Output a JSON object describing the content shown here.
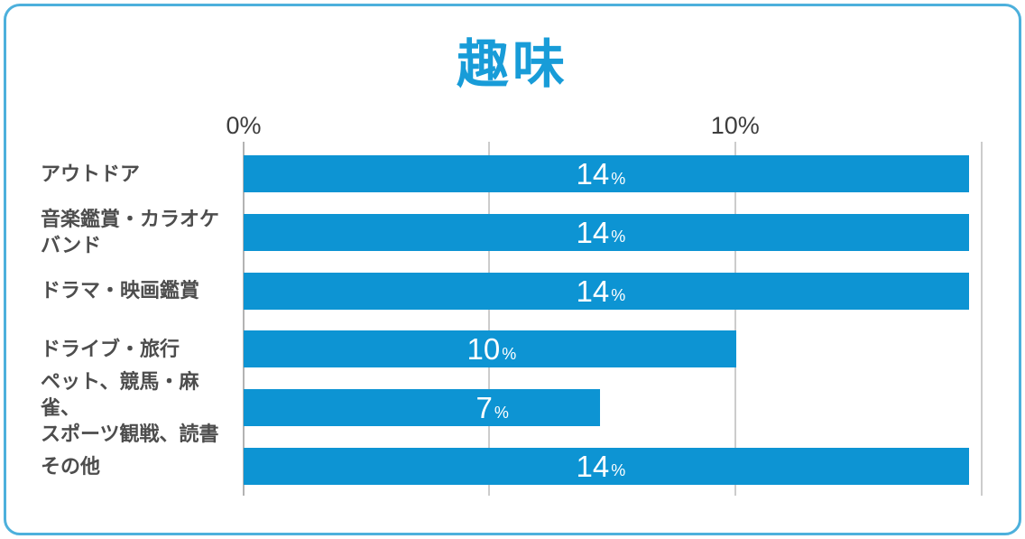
{
  "card": {
    "border_color": "#4db0dc",
    "background": "#ffffff"
  },
  "chart_data": {
    "type": "bar",
    "orientation": "horizontal",
    "title": "趣味",
    "title_color": "#189cd8",
    "bar_color": "#0d94d3",
    "value_label_color": "#ffffff",
    "category_label_color": "#4d4d4d",
    "axis_label_color": "#3d3d3d",
    "gridline_color": "#cccccc",
    "axis_line_color": "#b3b3b3",
    "xlabel": "",
    "ylabel": "",
    "xlim": [
      0,
      15
    ],
    "grid": true,
    "legend": false,
    "x_ticks": [
      {
        "label": "0%",
        "pct": 0
      },
      {
        "label": "10%",
        "pct": 66.6
      }
    ],
    "gridlines_pct": [
      0,
      33.3,
      66.6,
      100
    ],
    "value_suffix": "%",
    "categories": [
      "アウトドア",
      "音楽鑑賞・カラオケ\nバンド",
      "ドラマ・映画鑑賞",
      "ドライブ・旅行",
      "ペット、競馬・麻雀、\nスポーツ観戦、読書",
      "その他"
    ],
    "values": [
      14,
      14,
      14,
      10,
      7,
      14
    ],
    "bar_width_pct": [
      98.3,
      98.3,
      98.3,
      66.7,
      48.3,
      98.3
    ],
    "value_label_x_pct": [
      48.4,
      48.4,
      48.4,
      33.6,
      33.7,
      48.4
    ]
  }
}
